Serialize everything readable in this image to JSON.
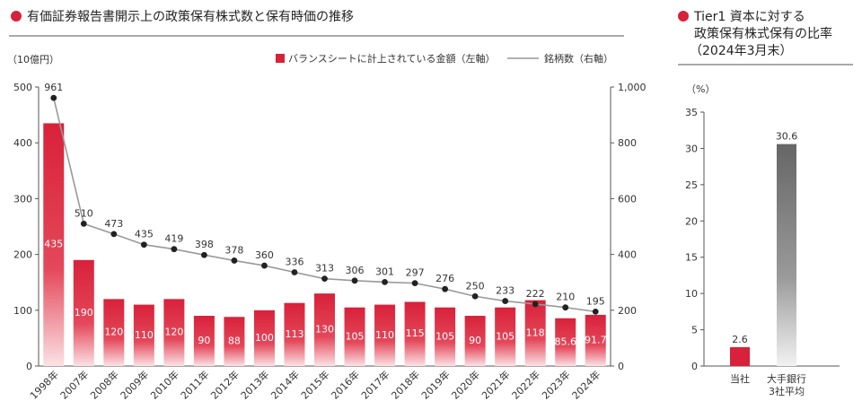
{
  "left_title": "有価証券報告書開示上の政策保有株式数と保有時価の推移",
  "right_title_lines": [
    "Tier1 資本に対する",
    "政策保有株式保有の比率",
    "（2024年3月末）"
  ],
  "colors": {
    "red": "#d8213a",
    "line": "#999999",
    "dot": "#222222",
    "gray": "#707070"
  },
  "chart_data": [
    {
      "type": "bar",
      "title": "",
      "left_unit": "（10億円）",
      "legend": {
        "bar": "バランスシートに計上されている金額（左軸）",
        "line": "銘柄数（右軸）"
      },
      "categories": [
        "1998年",
        "2007年",
        "2008年",
        "2009年",
        "2010年",
        "2011年",
        "2012年",
        "2013年",
        "2014年",
        "2015年",
        "2016年",
        "2017年",
        "2018年",
        "2019年",
        "2020年",
        "2021年",
        "2022年",
        "2023年",
        "2024年"
      ],
      "bar_labels": [
        "435",
        "190",
        "120",
        "110",
        "120",
        "90",
        "88",
        "100",
        "113",
        "130",
        "105",
        "110",
        "115",
        "105",
        "90",
        "105",
        "118",
        "85.6",
        "91.7"
      ],
      "bar_values": [
        435,
        190,
        120,
        110,
        120,
        90,
        88,
        100,
        113,
        130,
        105,
        110,
        115,
        105,
        90,
        105,
        118,
        85.6,
        91.7
      ],
      "line_values": [
        961,
        510,
        473,
        435,
        419,
        398,
        378,
        360,
        336,
        313,
        306,
        301,
        297,
        276,
        250,
        233,
        222,
        210,
        195
      ],
      "line_labels": [
        "961",
        "510",
        "473",
        "435",
        "419",
        "398",
        "378",
        "360",
        "336",
        "313",
        "306",
        "301",
        "297",
        "276",
        "250",
        "233",
        "222",
        "210",
        "195"
      ],
      "ylim_left": [
        0,
        500
      ],
      "left_ticks": [
        "0",
        "100",
        "200",
        "300",
        "400",
        "500"
      ],
      "ylim_right": [
        0,
        1000
      ],
      "right_ticks": [
        "0",
        "200",
        "400",
        "600",
        "800",
        "1,000"
      ]
    },
    {
      "type": "bar",
      "title": "",
      "unit": "（%）",
      "categories": [
        "当社",
        "大手銀行\n3社平均"
      ],
      "category_lines": [
        [
          "当社"
        ],
        [
          "大手銀行",
          "3社平均"
        ]
      ],
      "values": [
        2.6,
        30.6
      ],
      "value_labels": [
        "2.6",
        "30.6"
      ],
      "ylim": [
        0,
        35
      ],
      "ticks": [
        "0",
        "5",
        "10",
        "15",
        "20",
        "25",
        "30",
        "35"
      ]
    }
  ]
}
